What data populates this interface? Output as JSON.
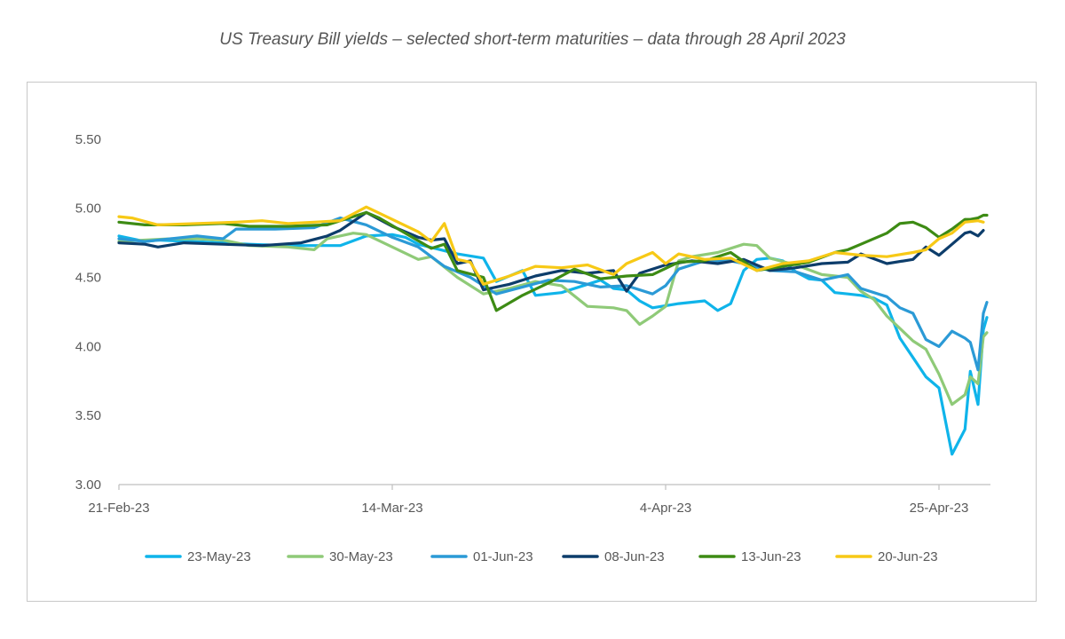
{
  "title": "US Treasury Bill yields – selected short-term maturities – data through 28 April 2023",
  "chart_data": {
    "type": "line",
    "title": "US Treasury Bill yields – selected short-term maturities – data through 28 April 2023",
    "xlabel": "",
    "ylabel": "",
    "x_axis_ticks": [
      "21-Feb-23",
      "14-Mar-23",
      "4-Apr-23",
      "25-Apr-23"
    ],
    "y_ticks": [
      "3.00",
      "3.50",
      "4.00",
      "4.50",
      "5.00",
      "5.50"
    ],
    "ylim": [
      3.0,
      5.75
    ],
    "xlim": [
      "2023-02-21",
      "2023-04-28"
    ],
    "grid": false,
    "legend": "bottom",
    "series": [
      {
        "name": "23-May-23",
        "color": "#0fb4ea",
        "points": [
          [
            "2023-02-21",
            4.8
          ],
          [
            "2023-02-23",
            4.76
          ],
          [
            "2023-02-24",
            4.77
          ],
          [
            "2023-03-01",
            4.75
          ],
          [
            "2023-03-03",
            4.74
          ],
          [
            "2023-03-06",
            4.73
          ],
          [
            "2023-03-10",
            4.73
          ],
          [
            "2023-03-12",
            4.8
          ],
          [
            "2023-03-14",
            4.81
          ],
          [
            "2023-03-15",
            4.79
          ],
          [
            "2023-03-16",
            4.74
          ],
          [
            "2023-03-19",
            4.67
          ],
          [
            "2023-03-21",
            4.64
          ],
          [
            "2023-03-22",
            4.47
          ],
          [
            "2023-03-24",
            4.55
          ],
          [
            "2023-03-25",
            4.37
          ],
          [
            "2023-03-27",
            4.39
          ],
          [
            "2023-03-30",
            4.48
          ],
          [
            "2023-03-31",
            4.42
          ],
          [
            "2023-04-01",
            4.41
          ],
          [
            "2023-04-02",
            4.33
          ],
          [
            "2023-04-03",
            4.28
          ],
          [
            "2023-04-05",
            4.31
          ],
          [
            "2023-04-07",
            4.33
          ],
          [
            "2023-04-08",
            4.26
          ],
          [
            "2023-04-09",
            4.31
          ],
          [
            "2023-04-10",
            4.55
          ],
          [
            "2023-04-11",
            4.63
          ],
          [
            "2023-04-12",
            4.64
          ],
          [
            "2023-04-13",
            4.62
          ],
          [
            "2023-04-14",
            4.54
          ],
          [
            "2023-04-15",
            4.49
          ],
          [
            "2023-04-16",
            4.48
          ],
          [
            "2023-04-17",
            4.39
          ],
          [
            "2023-04-18",
            4.38
          ],
          [
            "2023-04-19",
            4.37
          ],
          [
            "2023-04-20",
            4.35
          ],
          [
            "2023-04-21",
            4.3
          ],
          [
            "2023-04-22",
            4.06
          ],
          [
            "2023-04-23",
            3.92
          ],
          [
            "2023-04-24",
            3.78
          ],
          [
            "2023-04-25",
            3.7
          ],
          [
            "2023-04-26",
            3.22
          ],
          [
            "2023-04-27",
            3.4
          ],
          [
            "2023-04-27",
            3.82
          ],
          [
            "2023-04-28",
            3.58
          ],
          [
            "2023-04-28",
            4.12
          ],
          [
            "2023-04-28",
            4.21
          ]
        ]
      },
      {
        "name": "30-May-23",
        "color": "#8fca78",
        "points": [
          [
            "2023-02-21",
            4.76
          ],
          [
            "2023-02-23",
            4.77
          ],
          [
            "2023-02-25",
            4.78
          ],
          [
            "2023-02-27",
            4.78
          ],
          [
            "2023-03-01",
            4.77
          ],
          [
            "2023-03-03",
            4.73
          ],
          [
            "2023-03-06",
            4.72
          ],
          [
            "2023-03-08",
            4.7
          ],
          [
            "2023-03-09",
            4.78
          ],
          [
            "2023-03-11",
            4.82
          ],
          [
            "2023-03-12",
            4.81
          ],
          [
            "2023-03-14",
            4.72
          ],
          [
            "2023-03-16",
            4.63
          ],
          [
            "2023-03-17",
            4.65
          ],
          [
            "2023-03-19",
            4.5
          ],
          [
            "2023-03-21",
            4.38
          ],
          [
            "2023-03-23",
            4.42
          ],
          [
            "2023-03-25",
            4.47
          ],
          [
            "2023-03-27",
            4.44
          ],
          [
            "2023-03-29",
            4.29
          ],
          [
            "2023-03-31",
            4.28
          ],
          [
            "2023-04-01",
            4.26
          ],
          [
            "2023-04-02",
            4.16
          ],
          [
            "2023-04-03",
            4.22
          ],
          [
            "2023-04-04",
            4.29
          ],
          [
            "2023-04-05",
            4.62
          ],
          [
            "2023-04-06",
            4.65
          ],
          [
            "2023-04-08",
            4.68
          ],
          [
            "2023-04-10",
            4.74
          ],
          [
            "2023-04-11",
            4.73
          ],
          [
            "2023-04-12",
            4.64
          ],
          [
            "2023-04-14",
            4.59
          ],
          [
            "2023-04-16",
            4.52
          ],
          [
            "2023-04-18",
            4.5
          ],
          [
            "2023-04-19",
            4.4
          ],
          [
            "2023-04-20",
            4.34
          ],
          [
            "2023-04-21",
            4.22
          ],
          [
            "2023-04-23",
            4.04
          ],
          [
            "2023-04-24",
            3.98
          ],
          [
            "2023-04-25",
            3.8
          ],
          [
            "2023-04-26",
            3.58
          ],
          [
            "2023-04-27",
            3.65
          ],
          [
            "2023-04-27",
            3.78
          ],
          [
            "2023-04-28",
            3.73
          ],
          [
            "2023-04-28",
            4.07
          ],
          [
            "2023-04-28",
            4.1
          ]
        ]
      },
      {
        "name": "01-Jun-23",
        "color": "#2b9ad6",
        "points": [
          [
            "2023-02-21",
            4.78
          ],
          [
            "2023-02-23",
            4.76
          ],
          [
            "2023-02-25",
            4.78
          ],
          [
            "2023-02-27",
            4.8
          ],
          [
            "2023-03-01",
            4.78
          ],
          [
            "2023-03-02",
            4.85
          ],
          [
            "2023-03-05",
            4.85
          ],
          [
            "2023-03-08",
            4.86
          ],
          [
            "2023-03-10",
            4.93
          ],
          [
            "2023-03-12",
            4.88
          ],
          [
            "2023-03-14",
            4.79
          ],
          [
            "2023-03-16",
            4.72
          ],
          [
            "2023-03-18",
            4.58
          ],
          [
            "2023-03-20",
            4.5
          ],
          [
            "2023-03-22",
            4.38
          ],
          [
            "2023-03-24",
            4.43
          ],
          [
            "2023-03-26",
            4.48
          ],
          [
            "2023-03-28",
            4.47
          ],
          [
            "2023-03-30",
            4.43
          ],
          [
            "2023-04-01",
            4.44
          ],
          [
            "2023-04-03",
            4.38
          ],
          [
            "2023-04-04",
            4.44
          ],
          [
            "2023-04-05",
            4.56
          ],
          [
            "2023-04-07",
            4.62
          ],
          [
            "2023-04-09",
            4.62
          ],
          [
            "2023-04-10",
            4.6
          ],
          [
            "2023-04-12",
            4.55
          ],
          [
            "2023-04-14",
            4.54
          ],
          [
            "2023-04-16",
            4.48
          ],
          [
            "2023-04-18",
            4.52
          ],
          [
            "2023-04-19",
            4.42
          ],
          [
            "2023-04-21",
            4.36
          ],
          [
            "2023-04-22",
            4.28
          ],
          [
            "2023-04-23",
            4.24
          ],
          [
            "2023-04-24",
            4.05
          ],
          [
            "2023-04-25",
            4.0
          ],
          [
            "2023-04-26",
            4.11
          ],
          [
            "2023-04-27",
            4.06
          ],
          [
            "2023-04-27",
            4.03
          ],
          [
            "2023-04-28",
            3.83
          ],
          [
            "2023-04-28",
            4.24
          ],
          [
            "2023-04-28",
            4.32
          ]
        ]
      },
      {
        "name": "08-Jun-23",
        "color": "#0d3d6b",
        "points": [
          [
            "2023-02-21",
            4.75
          ],
          [
            "2023-02-23",
            4.74
          ],
          [
            "2023-02-24",
            4.72
          ],
          [
            "2023-02-26",
            4.75
          ],
          [
            "2023-03-01",
            4.74
          ],
          [
            "2023-03-04",
            4.73
          ],
          [
            "2023-03-07",
            4.75
          ],
          [
            "2023-03-09",
            4.8
          ],
          [
            "2023-03-10",
            4.84
          ],
          [
            "2023-03-12",
            4.97
          ],
          [
            "2023-03-14",
            4.87
          ],
          [
            "2023-03-16",
            4.79
          ],
          [
            "2023-03-17",
            4.77
          ],
          [
            "2023-03-18",
            4.78
          ],
          [
            "2023-03-19",
            4.6
          ],
          [
            "2023-03-20",
            4.62
          ],
          [
            "2023-03-21",
            4.41
          ],
          [
            "2023-03-23",
            4.45
          ],
          [
            "2023-03-25",
            4.51
          ],
          [
            "2023-03-27",
            4.55
          ],
          [
            "2023-03-29",
            4.53
          ],
          [
            "2023-03-31",
            4.55
          ],
          [
            "2023-04-01",
            4.4
          ],
          [
            "2023-04-02",
            4.53
          ],
          [
            "2023-04-04",
            4.59
          ],
          [
            "2023-04-06",
            4.62
          ],
          [
            "2023-04-08",
            4.6
          ],
          [
            "2023-04-10",
            4.63
          ],
          [
            "2023-04-12",
            4.55
          ],
          [
            "2023-04-14",
            4.57
          ],
          [
            "2023-04-16",
            4.6
          ],
          [
            "2023-04-18",
            4.61
          ],
          [
            "2023-04-19",
            4.67
          ],
          [
            "2023-04-21",
            4.6
          ],
          [
            "2023-04-23",
            4.63
          ],
          [
            "2023-04-24",
            4.72
          ],
          [
            "2023-04-25",
            4.66
          ],
          [
            "2023-04-26",
            4.74
          ],
          [
            "2023-04-27",
            4.82
          ],
          [
            "2023-04-27",
            4.83
          ],
          [
            "2023-04-28",
            4.8
          ],
          [
            "2023-04-28",
            4.84
          ]
        ]
      },
      {
        "name": "13-Jun-23",
        "color": "#3d8b14",
        "points": [
          [
            "2023-02-21",
            4.9
          ],
          [
            "2023-02-23",
            4.88
          ],
          [
            "2023-02-26",
            4.88
          ],
          [
            "2023-03-01",
            4.89
          ],
          [
            "2023-03-03",
            4.87
          ],
          [
            "2023-03-06",
            4.87
          ],
          [
            "2023-03-09",
            4.88
          ],
          [
            "2023-03-12",
            4.97
          ],
          [
            "2023-03-13",
            4.93
          ],
          [
            "2023-03-15",
            4.82
          ],
          [
            "2023-03-17",
            4.71
          ],
          [
            "2023-03-18",
            4.74
          ],
          [
            "2023-03-19",
            4.55
          ],
          [
            "2023-03-21",
            4.5
          ],
          [
            "2023-03-22",
            4.26
          ],
          [
            "2023-03-24",
            4.37
          ],
          [
            "2023-03-26",
            4.46
          ],
          [
            "2023-03-28",
            4.56
          ],
          [
            "2023-03-30",
            4.49
          ],
          [
            "2023-04-01",
            4.51
          ],
          [
            "2023-04-03",
            4.52
          ],
          [
            "2023-04-05",
            4.61
          ],
          [
            "2023-04-07",
            4.62
          ],
          [
            "2023-04-09",
            4.68
          ],
          [
            "2023-04-11",
            4.55
          ],
          [
            "2023-04-13",
            4.58
          ],
          [
            "2023-04-15",
            4.61
          ],
          [
            "2023-04-17",
            4.68
          ],
          [
            "2023-04-18",
            4.7
          ],
          [
            "2023-04-19",
            4.74
          ],
          [
            "2023-04-21",
            4.82
          ],
          [
            "2023-04-22",
            4.89
          ],
          [
            "2023-04-23",
            4.9
          ],
          [
            "2023-04-24",
            4.86
          ],
          [
            "2023-04-25",
            4.79
          ],
          [
            "2023-04-26",
            4.85
          ],
          [
            "2023-04-27",
            4.92
          ],
          [
            "2023-04-27",
            4.92
          ],
          [
            "2023-04-28",
            4.93
          ],
          [
            "2023-04-28",
            4.95
          ],
          [
            "2023-04-28",
            4.95
          ]
        ]
      },
      {
        "name": "20-Jun-23",
        "color": "#f7c916",
        "points": [
          [
            "2023-02-21",
            4.94
          ],
          [
            "2023-02-22",
            4.93
          ],
          [
            "2023-02-24",
            4.88
          ],
          [
            "2023-02-27",
            4.89
          ],
          [
            "2023-03-02",
            4.9
          ],
          [
            "2023-03-04",
            4.91
          ],
          [
            "2023-03-06",
            4.89
          ],
          [
            "2023-03-08",
            4.9
          ],
          [
            "2023-03-10",
            4.91
          ],
          [
            "2023-03-11",
            4.96
          ],
          [
            "2023-03-12",
            5.01
          ],
          [
            "2023-03-14",
            4.92
          ],
          [
            "2023-03-16",
            4.83
          ],
          [
            "2023-03-17",
            4.76
          ],
          [
            "2023-03-18",
            4.89
          ],
          [
            "2023-03-19",
            4.63
          ],
          [
            "2023-03-20",
            4.61
          ],
          [
            "2023-03-21",
            4.45
          ],
          [
            "2023-03-23",
            4.51
          ],
          [
            "2023-03-25",
            4.58
          ],
          [
            "2023-03-27",
            4.57
          ],
          [
            "2023-03-29",
            4.59
          ],
          [
            "2023-03-31",
            4.52
          ],
          [
            "2023-04-01",
            4.6
          ],
          [
            "2023-04-03",
            4.68
          ],
          [
            "2023-04-04",
            4.6
          ],
          [
            "2023-04-05",
            4.67
          ],
          [
            "2023-04-07",
            4.63
          ],
          [
            "2023-04-09",
            4.64
          ],
          [
            "2023-04-11",
            4.55
          ],
          [
            "2023-04-13",
            4.6
          ],
          [
            "2023-04-15",
            4.62
          ],
          [
            "2023-04-17",
            4.68
          ],
          [
            "2023-04-19",
            4.66
          ],
          [
            "2023-04-21",
            4.65
          ],
          [
            "2023-04-23",
            4.68
          ],
          [
            "2023-04-24",
            4.7
          ],
          [
            "2023-04-25",
            4.78
          ],
          [
            "2023-04-26",
            4.82
          ],
          [
            "2023-04-27",
            4.9
          ],
          [
            "2023-04-28",
            4.91
          ],
          [
            "2023-04-28",
            4.9
          ]
        ]
      }
    ]
  }
}
